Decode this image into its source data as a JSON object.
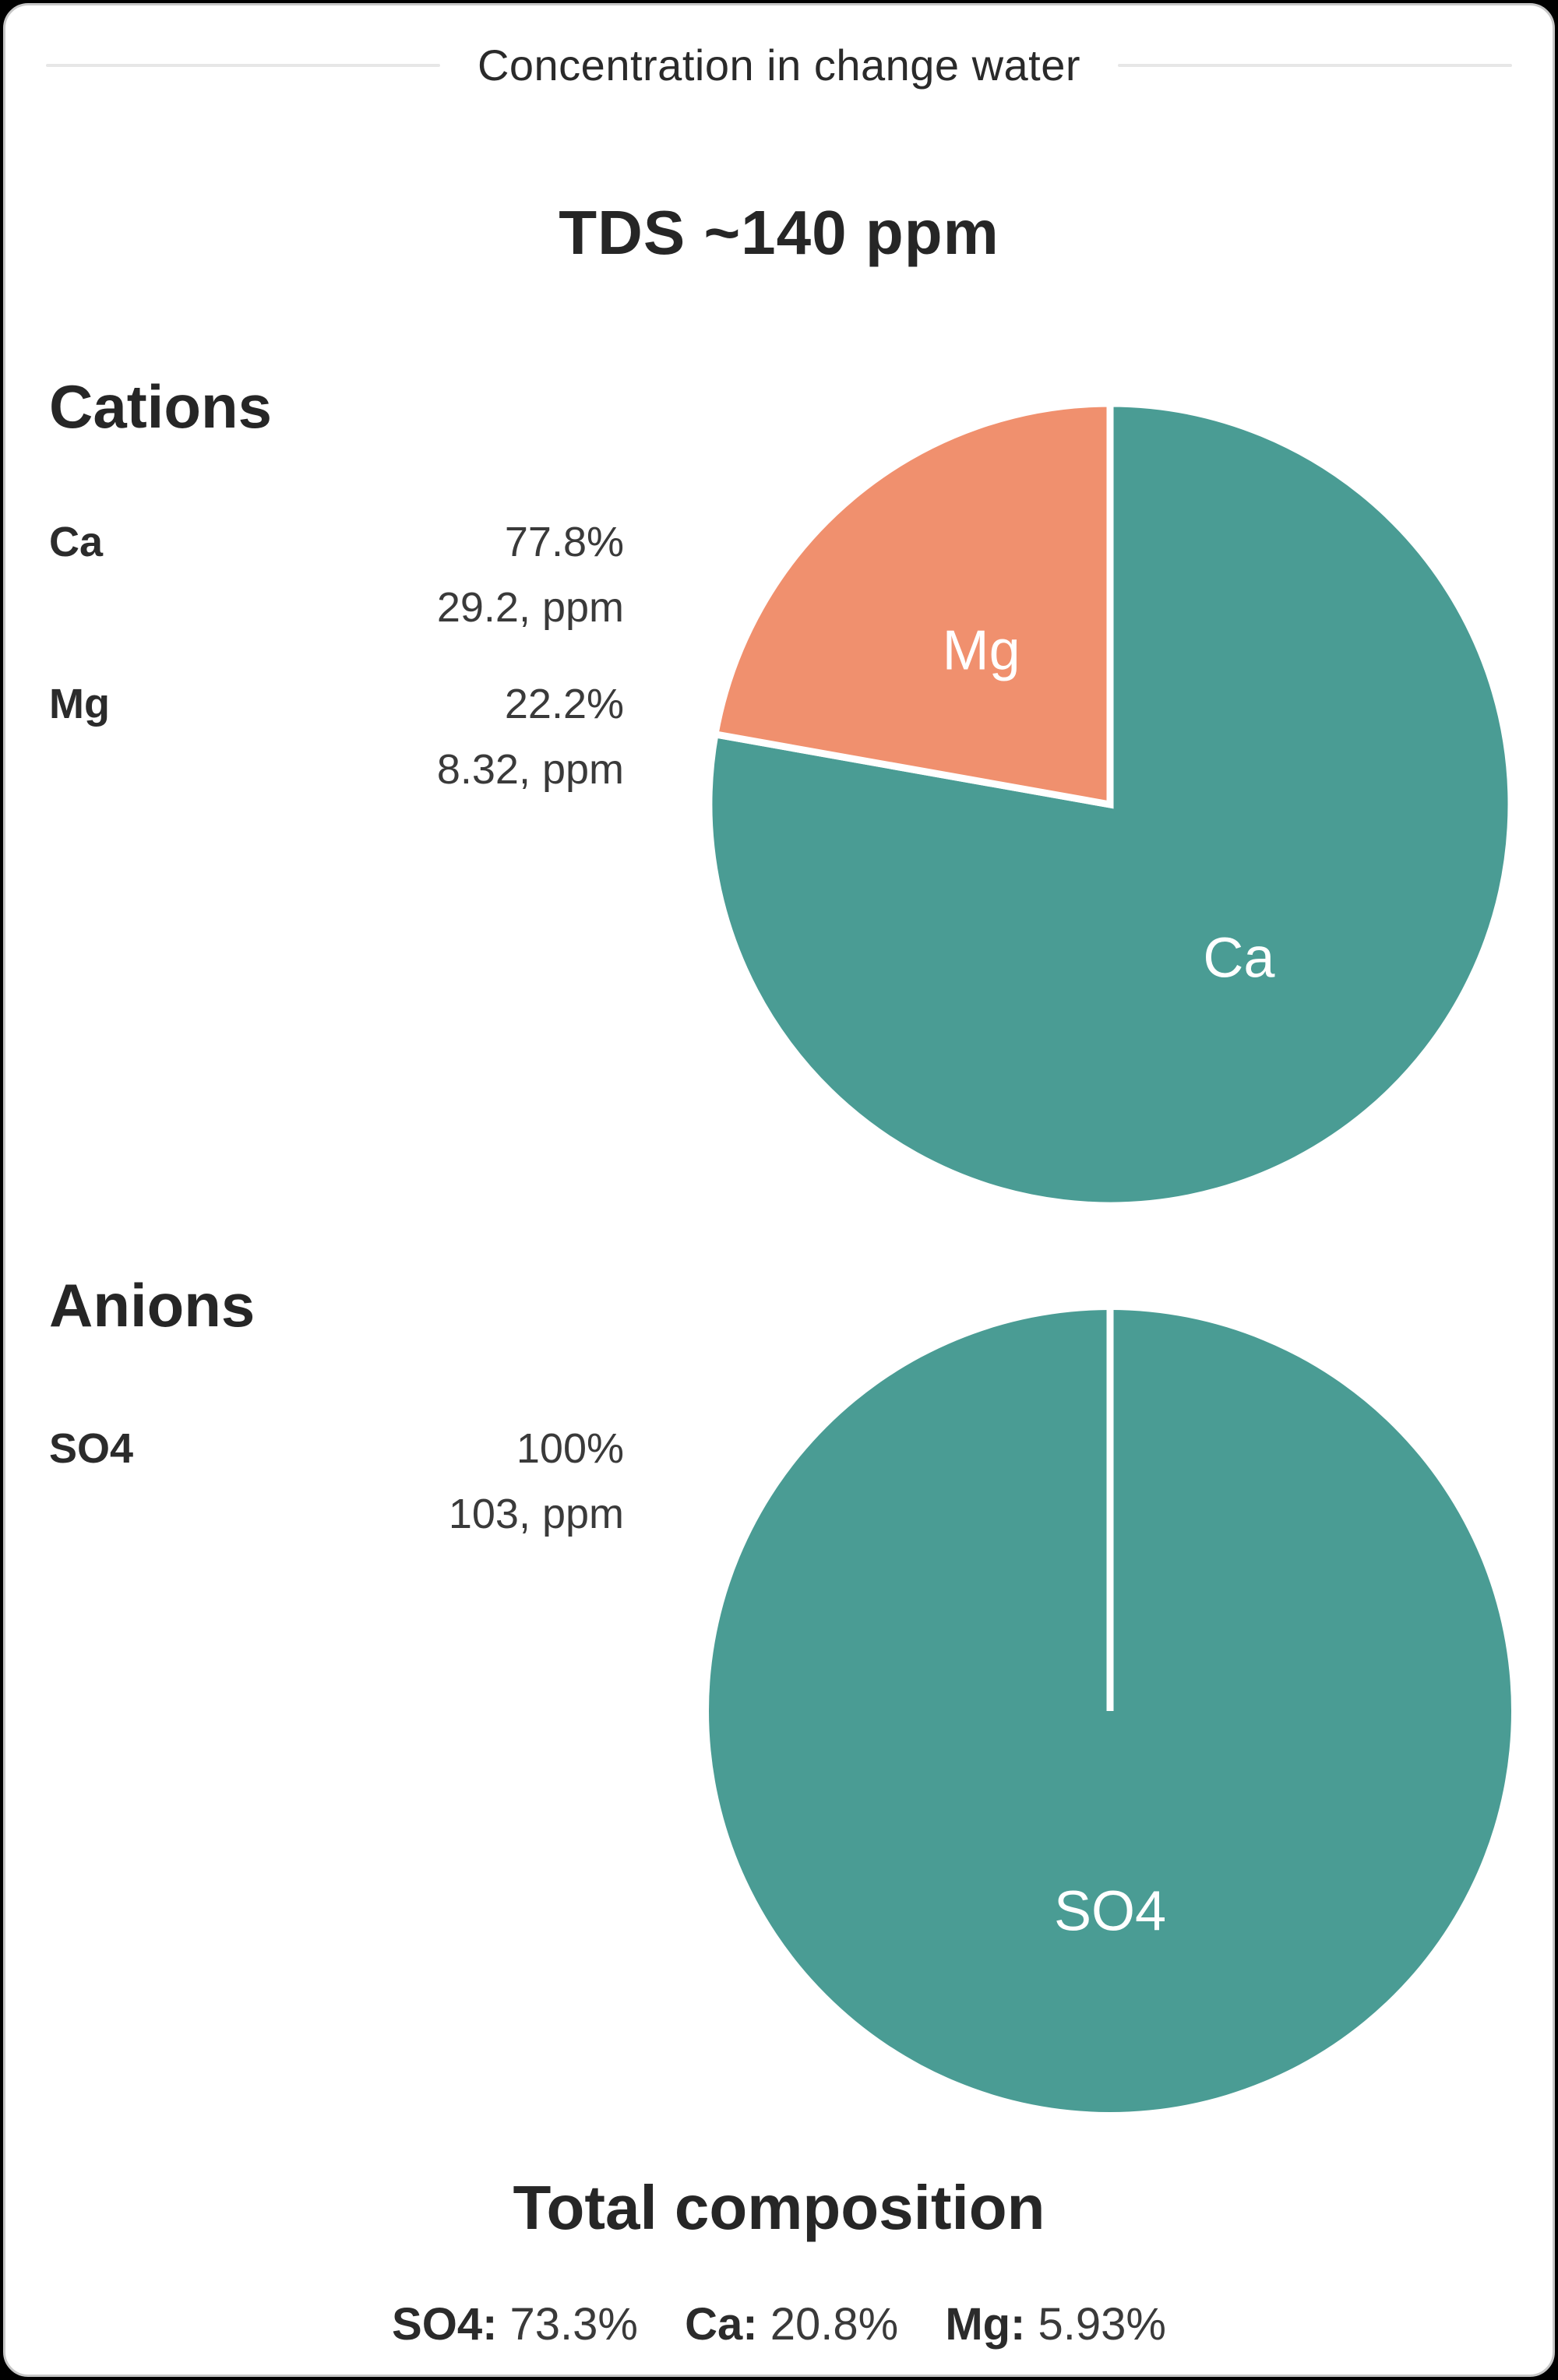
{
  "header": {
    "title": "Concentration in change water"
  },
  "tds_title": "TDS ~140 ppm",
  "colors": {
    "teal": "#4A9C94",
    "orange": "#F0906E",
    "text_dark": "#262626",
    "divider": "#e7e7e7",
    "card_border": "#c7c7c7",
    "page_background": "#000000",
    "card_background": "#ffffff",
    "pie_label_text": "#ffffff"
  },
  "cations": {
    "heading": "Cations",
    "entries": [
      {
        "label": "Ca",
        "percent": "77.8%",
        "ppm": "29.2, ppm"
      },
      {
        "label": "Mg",
        "percent": "22.2%",
        "ppm": "8.32, ppm"
      }
    ]
  },
  "anions": {
    "heading": "Anions",
    "entries": [
      {
        "label": "SO4",
        "percent": "100%",
        "ppm": "103, ppm"
      }
    ]
  },
  "footer": {
    "title": "Total composition",
    "items": [
      {
        "label": "SO4:",
        "value": "73.3%"
      },
      {
        "label": "Ca:",
        "value": "20.8%"
      },
      {
        "label": "Mg:",
        "value": "5.93%"
      }
    ]
  },
  "chart_data": [
    {
      "type": "pie",
      "title": "Cations",
      "labels": [
        "Ca",
        "Mg"
      ],
      "values": [
        77.8,
        22.2
      ],
      "ppm_values": [
        29.2,
        8.32
      ],
      "colors": [
        "#4A9C94",
        "#F0906E"
      ],
      "start_angle": "12-oclock",
      "direction": "clockwise",
      "slice_gap_color": "#ffffff",
      "label_position": "inside"
    },
    {
      "type": "pie",
      "title": "Anions",
      "labels": [
        "SO4"
      ],
      "values": [
        100
      ],
      "ppm_values": [
        103
      ],
      "colors": [
        "#4A9C94"
      ],
      "start_angle": "12-oclock",
      "direction": "clockwise",
      "slice_gap_color": "#ffffff",
      "label_position": "inside"
    },
    {
      "type": "totals",
      "title": "Total composition",
      "labels": [
        "SO4",
        "Ca",
        "Mg"
      ],
      "values": [
        73.3,
        20.8,
        5.93
      ],
      "tds_ppm": 140
    }
  ]
}
